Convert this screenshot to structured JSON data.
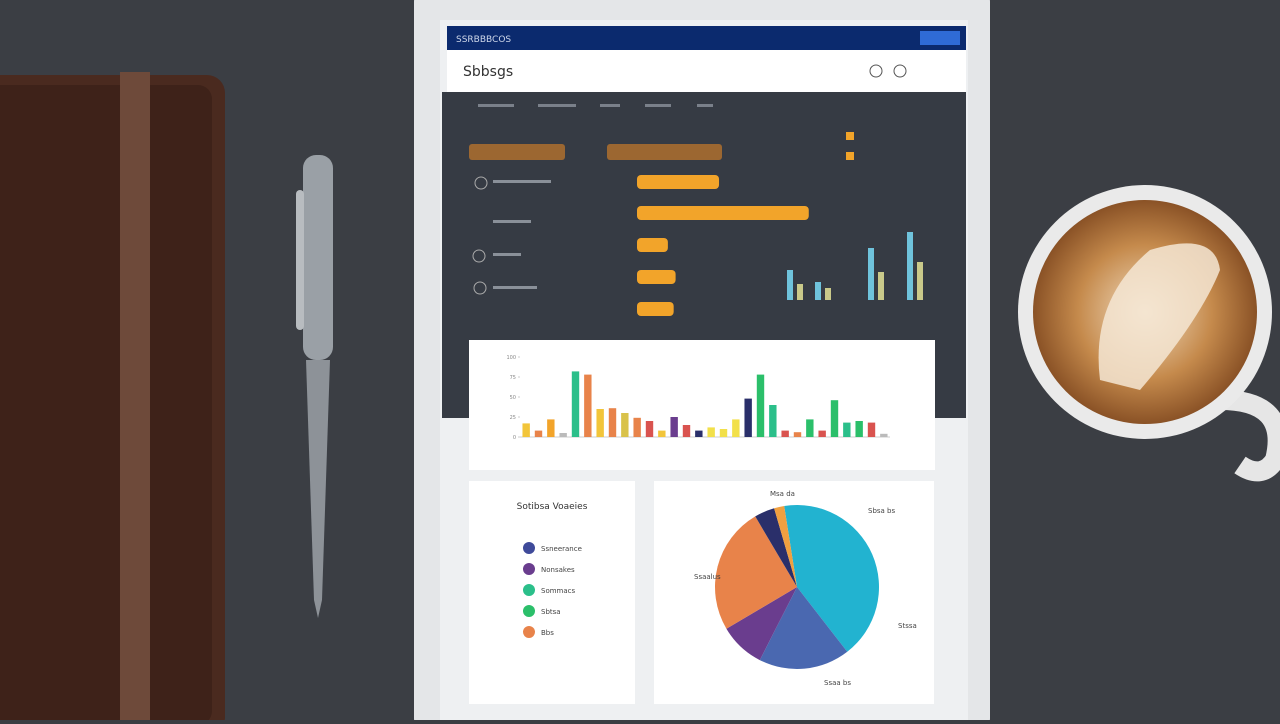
{
  "dashboard": {
    "top_bar": "SSRBBBCOS",
    "brand": "Sbbsgs",
    "pie_card_title": "Sotibsa Voaeies",
    "legend": [
      {
        "label": "Ssneerance",
        "color": "#3f4a9a"
      },
      {
        "label": "Nonsakes",
        "color": "#6a3d8e"
      },
      {
        "label": "Sommacs",
        "color": "#2bbf8a"
      },
      {
        "label": "Sbtsa",
        "color": "#2bbf6a"
      },
      {
        "label": "Bbs",
        "color": "#e8834a"
      }
    ]
  },
  "chart_data": [
    {
      "type": "hbar",
      "color": "#f2a42a",
      "values": [
        85,
        178,
        32,
        40,
        38
      ],
      "xlim": [
        0,
        200
      ]
    },
    {
      "type": "grouped",
      "xlim": [
        0,
        100
      ],
      "ylim": [
        0,
        80
      ],
      "series": [
        {
          "color": "#6fc3dc",
          "values": [
            30,
            18,
            52,
            68
          ]
        },
        {
          "color": "#c9c98a",
          "values": [
            16,
            12,
            28,
            38
          ]
        }
      ]
    },
    {
      "type": "bar",
      "ylim": [
        0,
        100
      ],
      "yticks": [
        0,
        25,
        50,
        75,
        100
      ],
      "values": [
        17,
        8,
        22,
        5,
        82,
        78,
        35,
        36,
        30,
        24,
        20,
        8,
        25,
        15,
        8,
        12,
        10,
        22,
        48,
        78,
        40,
        8,
        6,
        22,
        8,
        46,
        18,
        20,
        18,
        4
      ],
      "colors": [
        "#f2c53a",
        "#e8834a",
        "#f2a42a",
        "#bbbbbb",
        "#2bbf8a",
        "#e8834a",
        "#f2c53a",
        "#e8834a",
        "#d9c24a",
        "#e8834a",
        "#d9534f",
        "#f2c53a",
        "#6a3d8e",
        "#d9534f",
        "#2a2f6a",
        "#f2e04a",
        "#f2e04a",
        "#f2e04a",
        "#2a2f6a",
        "#2bbf6a",
        "#2bbf8a",
        "#d9534f",
        "#e8834a",
        "#2bbf6a",
        "#d9534f",
        "#2bbf6a",
        "#2bbf8a",
        "#2bbf6a",
        "#d9534f",
        "#bbbbbb"
      ]
    },
    {
      "type": "pie",
      "values": [
        42,
        18,
        9,
        25,
        4,
        2
      ],
      "colors": [
        "#22b3d0",
        "#4a68b0",
        "#6a3d8e",
        "#e8834a",
        "#2a2f6a",
        "#f0a040"
      ],
      "annotations": [
        "Msa da",
        "Sbsa bs",
        "Ssaalus",
        "Stssa",
        "Ssaa bs"
      ]
    }
  ]
}
